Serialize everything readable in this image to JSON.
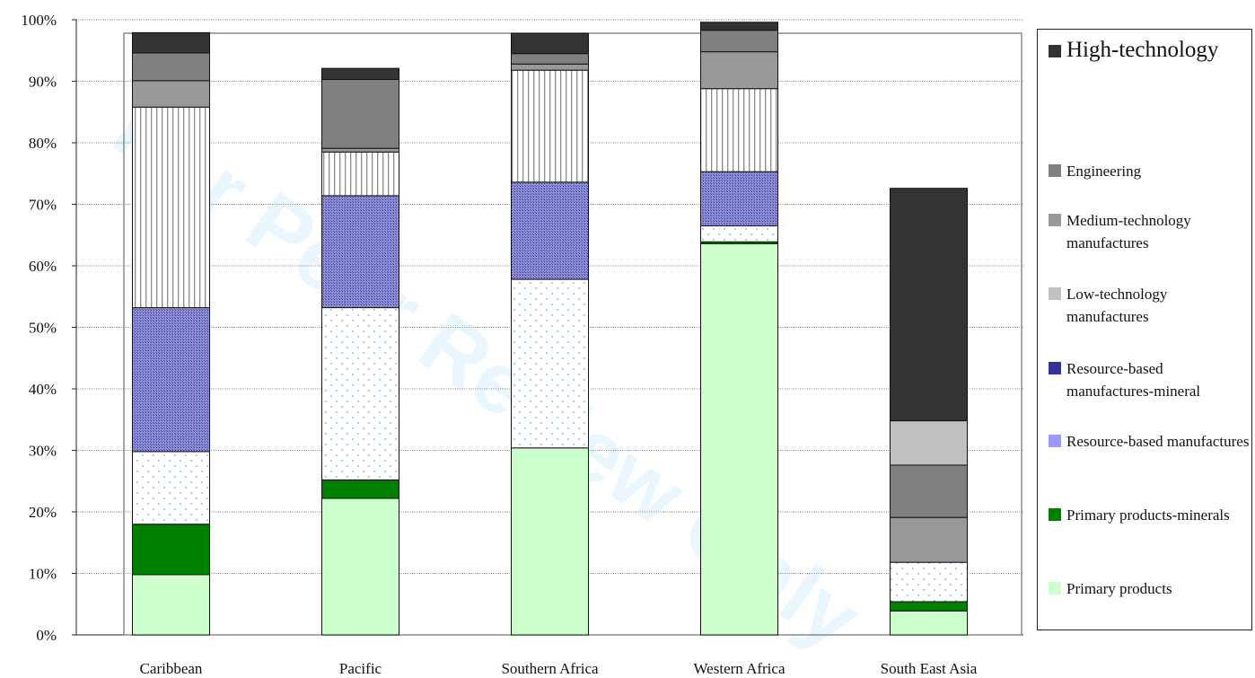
{
  "chart_data": {
    "type": "bar",
    "stacked": true,
    "categories": [
      "Caribbean",
      "Pacific",
      "Southern Africa",
      "Western Africa",
      "South East Asia"
    ],
    "yticks": [
      "0%",
      "10%",
      "20%",
      "30%",
      "40%",
      "50%",
      "60%",
      "70%",
      "80%",
      "90%",
      "100%"
    ],
    "ylim": [
      0,
      100
    ],
    "grid": true,
    "legend_position": "right",
    "series": [
      {
        "name": "Primary products",
        "color": "#ccffcc",
        "pattern": "solid",
        "values": [
          9.8,
          22.2,
          30.4,
          63.6,
          3.9
        ]
      },
      {
        "name": "Primary products-minerals",
        "color": "#008000",
        "pattern": "solid",
        "values": [
          8.2,
          3.0,
          0.0,
          0.3,
          1.5
        ]
      },
      {
        "name": "Resource-based manufactures",
        "color": "#9999ff",
        "pattern": "dots",
        "values": [
          11.8,
          28.0,
          27.4,
          2.6,
          6.4
        ]
      },
      {
        "name": "Resource-based manufactures-mineral",
        "color": "#333399",
        "pattern": "crosshatch",
        "values": [
          23.4,
          18.2,
          15.8,
          8.8,
          0.0
        ]
      },
      {
        "name": "Low-technology manufactures",
        "color": "#c0c0c0",
        "pattern": "vstripes",
        "values": [
          32.6,
          7.1,
          18.2,
          13.5,
          0.0
        ]
      },
      {
        "name": "Medium-technology manufactures",
        "color": "#999999",
        "pattern": "solid",
        "values": [
          4.3,
          0.6,
          1.0,
          6.0,
          7.3
        ]
      },
      {
        "name": "Engineering",
        "color": "#808080",
        "pattern": "solid",
        "values": [
          4.5,
          11.2,
          1.7,
          3.5,
          14.0
        ]
      },
      {
        "name": "High-technology",
        "color": "#333333",
        "pattern": "solid",
        "values": [
          3.3,
          1.8,
          3.3,
          1.3,
          39.5
        ]
      }
    ],
    "overlay_series": [
      {
        "category": "South East Asia",
        "pattern": "dots",
        "bottom": 27.6,
        "top": 34.8,
        "color": "#c0c0c0"
      }
    ]
  },
  "legend": {
    "items": [
      {
        "label": "High-technology",
        "color": "#333333",
        "big": true
      },
      {
        "label": "Engineering",
        "color": "#808080",
        "big": false
      },
      {
        "label": "Medium-technology manufactures",
        "color": "#999999",
        "big": false
      },
      {
        "label": "Low-technology manufactures",
        "color": "#c0c0c0",
        "big": false
      },
      {
        "label": "Resource-based manufactures-mineral",
        "color": "#333399",
        "big": false
      },
      {
        "label": "Resource-based manufactures",
        "color": "#9999ff",
        "big": false
      },
      {
        "label": "Primary products-minerals",
        "color": "#008000",
        "big": false
      },
      {
        "label": "Primary products",
        "color": "#ccffcc",
        "big": false
      }
    ]
  }
}
